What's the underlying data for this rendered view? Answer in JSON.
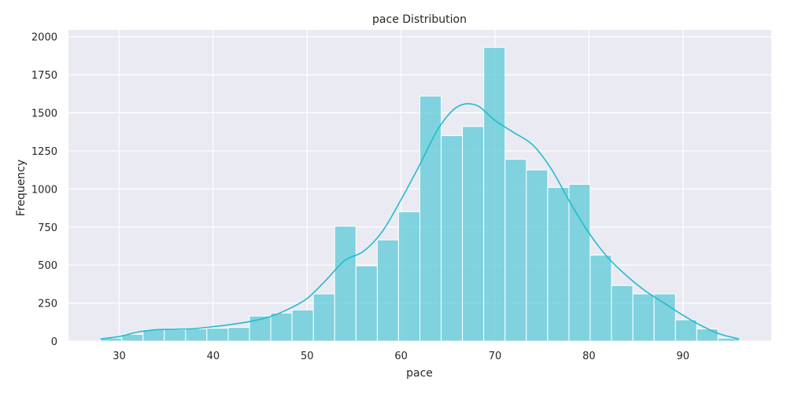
{
  "chart_data": {
    "type": "histogram",
    "title": "pace Distribution",
    "xlabel": "pace",
    "ylabel": "Frequency",
    "xlim": [
      24.6,
      99.4
    ],
    "ylim": [
      0,
      2045
    ],
    "xticks": [
      30,
      40,
      50,
      60,
      70,
      80,
      90
    ],
    "yticks": [
      0,
      250,
      500,
      750,
      1000,
      1250,
      1500,
      1750,
      2000
    ],
    "grid": true,
    "colors": {
      "bar": "#5bcad7",
      "bar_edge": "#ffffff",
      "kde": "#22bccf",
      "plot_bg": "#eaeaf2",
      "grid": "#ffffff"
    },
    "bin_edges": [
      28,
      30.27,
      32.53,
      34.8,
      37.07,
      39.33,
      41.6,
      43.87,
      46.13,
      48.4,
      50.67,
      52.93,
      55.2,
      57.47,
      59.73,
      62,
      64.27,
      66.53,
      68.8,
      71.07,
      73.33,
      75.6,
      77.87,
      80.13,
      82.4,
      84.67,
      86.93,
      89.2,
      91.47,
      93.73,
      96
    ],
    "counts": [
      20,
      45,
      75,
      75,
      80,
      85,
      90,
      165,
      185,
      205,
      310,
      755,
      495,
      665,
      850,
      1610,
      1350,
      1410,
      1930,
      1195,
      1125,
      1010,
      1030,
      565,
      365,
      310,
      310,
      140,
      80,
      20
    ],
    "kde": {
      "x": [
        28,
        30,
        32,
        34,
        36,
        38,
        40,
        42,
        44,
        46,
        48,
        50,
        52,
        54,
        56,
        58,
        60,
        62,
        64,
        66,
        68,
        70,
        72,
        74,
        76,
        78,
        80,
        82,
        84,
        86,
        88,
        90,
        92,
        94,
        96
      ],
      "y": [
        15,
        30,
        60,
        75,
        78,
        82,
        95,
        110,
        130,
        160,
        210,
        280,
        400,
        530,
        590,
        720,
        930,
        1160,
        1400,
        1540,
        1550,
        1450,
        1370,
        1290,
        1130,
        910,
        710,
        550,
        430,
        330,
        250,
        170,
        100,
        45,
        15
      ]
    }
  }
}
